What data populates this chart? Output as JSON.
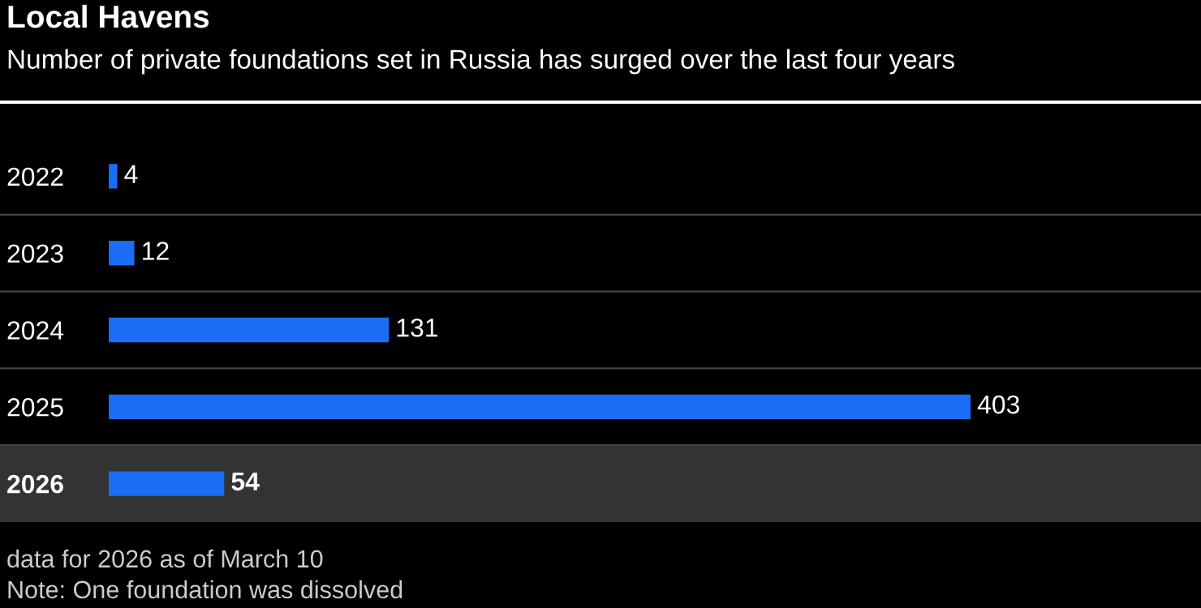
{
  "chart_data": {
    "type": "bar",
    "orientation": "horizontal",
    "title": "Local Havens",
    "subtitle": "Number of private foundations set in Russia has surged over the last four years",
    "categories": [
      "2022",
      "2023",
      "2024",
      "2025",
      "2026"
    ],
    "values": [
      4,
      12,
      131,
      403,
      54
    ],
    "color": "#1a6ef5",
    "data_labels": true,
    "grid": "y",
    "bands": [
      {
        "axis": "y",
        "from": "2026",
        "to": "2026",
        "color": "#333333"
      }
    ],
    "annotations": [
      "data for 2026 as of March 10",
      "Note: One foundation was dissolved"
    ]
  }
}
